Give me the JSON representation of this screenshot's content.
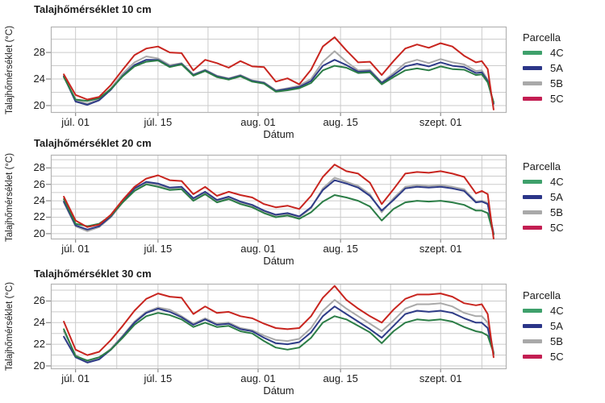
{
  "legend": {
    "title": "Parcella",
    "entries": [
      {
        "label": "4C",
        "color": "#3ea06b"
      },
      {
        "label": "5A",
        "color": "#2b3588"
      },
      {
        "label": "5B",
        "color": "#a9a9a9"
      },
      {
        "label": "5C",
        "color": "#c31e52"
      }
    ]
  },
  "chart_data": [
    {
      "type": "line",
      "title": "Talajhőmérséklet 10 cm",
      "xlabel": "Dátum",
      "ylabel": "Talajhőmérséklet (°C)",
      "legend_title": "Parcella",
      "xlim": [
        -4.2,
        73.2
      ],
      "ylim": [
        18.9,
        31.9
      ],
      "y_tick_labels": [
        20,
        24,
        28
      ],
      "y_gridline_start": 20,
      "y_gridline_step": 2,
      "x_ticks": [
        {
          "day": 0,
          "label": "júl. 01"
        },
        {
          "day": 14,
          "label": "júl. 15"
        },
        {
          "day": 31,
          "label": "aug. 01"
        },
        {
          "day": 45,
          "label": "aug. 15"
        },
        {
          "day": 62,
          "label": "szept. 01"
        }
      ],
      "x_gridline_days": [
        0,
        7,
        14,
        22.5,
        31,
        38,
        45,
        53.5,
        62,
        69
      ],
      "x_days": [
        -2,
        0,
        2,
        4,
        6,
        8,
        10,
        12,
        14,
        16,
        18,
        20,
        22,
        24,
        26,
        28,
        30,
        32,
        34,
        36,
        38,
        40,
        42,
        44,
        46,
        48,
        50,
        52,
        54,
        56,
        58,
        60,
        62,
        64,
        66,
        68,
        69,
        70,
        71
      ],
      "series": [
        {
          "name": "4C",
          "line_color": "#2b7d46",
          "legend_color": "#3ea06b",
          "values": [
            24.3,
            20.9,
            20.7,
            21.1,
            22.5,
            24.4,
            25.9,
            26.6,
            26.8,
            25.8,
            26.2,
            24.5,
            25.2,
            24.3,
            23.9,
            24.4,
            23.6,
            23.3,
            22.1,
            22.3,
            22.6,
            23.4,
            25.3,
            26.0,
            25.7,
            24.9,
            25.0,
            23.2,
            24.3,
            25.3,
            25.6,
            25.3,
            25.9,
            25.5,
            25.4,
            24.6,
            24.7,
            23.5,
            20.5
          ]
        },
        {
          "name": "5A",
          "line_color": "#2e3b87",
          "legend_color": "#2b3588",
          "values": [
            24.4,
            20.6,
            20.1,
            20.8,
            22.4,
            24.5,
            26.1,
            26.9,
            26.9,
            25.9,
            26.3,
            24.6,
            25.3,
            24.4,
            24.0,
            24.5,
            23.7,
            23.4,
            22.2,
            22.5,
            22.8,
            23.7,
            26.0,
            26.9,
            26.1,
            25.1,
            25.2,
            23.4,
            24.6,
            25.9,
            26.3,
            25.9,
            26.5,
            26.0,
            25.8,
            24.9,
            25.0,
            23.7,
            20.3
          ]
        },
        {
          "name": "5B",
          "line_color": "#a9a9a9",
          "legend_color": "#a9a9a9",
          "values": [
            24.5,
            20.8,
            20.3,
            20.9,
            22.6,
            24.8,
            26.5,
            27.4,
            27.1,
            26.1,
            26.4,
            24.7,
            25.4,
            24.5,
            24.1,
            24.6,
            23.8,
            23.5,
            22.3,
            22.6,
            23.0,
            24.0,
            26.6,
            28.2,
            26.6,
            25.3,
            25.4,
            23.5,
            24.9,
            26.4,
            26.9,
            26.4,
            27.0,
            26.5,
            26.2,
            25.2,
            25.3,
            23.9,
            20.2
          ]
        },
        {
          "name": "5C",
          "line_color": "#c8251f",
          "legend_color": "#c31e52",
          "values": [
            24.7,
            21.6,
            20.9,
            21.3,
            23.1,
            25.4,
            27.6,
            28.6,
            28.9,
            28.0,
            27.9,
            25.3,
            26.9,
            26.4,
            25.7,
            26.7,
            25.9,
            25.8,
            23.6,
            24.1,
            23.2,
            25.4,
            28.9,
            30.3,
            28.3,
            26.5,
            26.6,
            24.6,
            26.7,
            28.6,
            29.2,
            28.7,
            29.4,
            28.9,
            27.5,
            26.5,
            26.7,
            25.5,
            19.4
          ]
        }
      ]
    },
    {
      "type": "line",
      "title": "Talajhőmérséklet 20 cm",
      "xlabel": "Dátum",
      "ylabel": "Talajhőmérséklet (°C)",
      "legend_title": "Parcella",
      "xlim": [
        -4.2,
        73.2
      ],
      "ylim": [
        19.3,
        29.6
      ],
      "y_tick_labels": [
        20,
        22,
        24,
        26,
        28
      ],
      "y_gridline_start": 20,
      "y_gridline_step": 1,
      "x_ticks": [
        {
          "day": 0,
          "label": "júl. 01"
        },
        {
          "day": 14,
          "label": "júl. 15"
        },
        {
          "day": 31,
          "label": "aug. 01"
        },
        {
          "day": 45,
          "label": "aug. 15"
        },
        {
          "day": 62,
          "label": "szept. 01"
        }
      ],
      "x_gridline_days": [
        0,
        7,
        14,
        22.5,
        31,
        38,
        45,
        53.5,
        62,
        69
      ],
      "x_days": [
        -2,
        0,
        2,
        4,
        6,
        8,
        10,
        12,
        14,
        16,
        18,
        20,
        22,
        24,
        26,
        28,
        30,
        32,
        34,
        36,
        38,
        40,
        42,
        44,
        46,
        48,
        50,
        52,
        54,
        56,
        58,
        60,
        62,
        64,
        66,
        68,
        69,
        70,
        71
      ],
      "series": [
        {
          "name": "4C",
          "line_color": "#2b7d46",
          "legend_color": "#3ea06b",
          "values": [
            24.2,
            21.2,
            20.9,
            21.2,
            22.2,
            23.8,
            25.2,
            26.0,
            25.7,
            25.3,
            25.4,
            24.0,
            24.8,
            23.8,
            24.2,
            23.6,
            23.2,
            22.5,
            22.0,
            22.2,
            21.8,
            22.6,
            23.9,
            24.7,
            24.4,
            24.0,
            23.3,
            21.6,
            23.0,
            23.8,
            24.0,
            23.9,
            24.0,
            23.8,
            23.5,
            22.8,
            22.8,
            22.5,
            19.9
          ]
        },
        {
          "name": "5A",
          "line_color": "#2e3b87",
          "legend_color": "#2b3588",
          "values": [
            23.9,
            21.0,
            20.5,
            20.9,
            22.1,
            23.9,
            25.5,
            26.3,
            26.1,
            25.6,
            25.7,
            24.3,
            25.1,
            24.1,
            24.5,
            23.9,
            23.5,
            22.8,
            22.3,
            22.5,
            22.1,
            23.2,
            25.3,
            26.5,
            26.1,
            25.6,
            24.6,
            22.8,
            24.1,
            25.5,
            25.7,
            25.6,
            25.7,
            25.5,
            25.2,
            23.8,
            23.9,
            23.6,
            20.0
          ]
        },
        {
          "name": "5B",
          "line_color": "#a9a9a9",
          "legend_color": "#a9a9a9",
          "values": [
            23.8,
            20.9,
            20.3,
            20.8,
            22.0,
            23.8,
            25.4,
            26.2,
            25.9,
            25.5,
            25.6,
            24.2,
            25.0,
            24.0,
            24.4,
            23.8,
            23.4,
            22.7,
            22.2,
            22.4,
            22.0,
            23.1,
            25.5,
            26.8,
            26.3,
            25.8,
            24.8,
            22.6,
            24.3,
            25.7,
            25.9,
            25.8,
            25.9,
            25.7,
            25.4,
            23.9,
            24.0,
            23.7,
            19.9
          ]
        },
        {
          "name": "5C",
          "line_color": "#c8251f",
          "legend_color": "#c31e52",
          "values": [
            24.5,
            21.6,
            20.8,
            21.1,
            22.3,
            24.1,
            25.7,
            26.7,
            27.1,
            26.5,
            26.4,
            24.8,
            25.7,
            24.6,
            25.1,
            24.7,
            24.4,
            23.6,
            23.2,
            23.4,
            23.0,
            24.6,
            26.9,
            28.4,
            27.6,
            27.3,
            26.2,
            23.6,
            25.4,
            27.3,
            27.5,
            27.4,
            27.6,
            27.3,
            26.9,
            24.9,
            25.2,
            24.8,
            19.4
          ]
        }
      ]
    },
    {
      "type": "line",
      "title": "Talajhőmérséklet 30 cm",
      "xlabel": "Dátum",
      "ylabel": "Talajhőmérséklet (°C)",
      "legend_title": "Parcella",
      "xlim": [
        -4.2,
        73.2
      ],
      "ylim": [
        19.7,
        27.6
      ],
      "y_tick_labels": [
        20,
        22,
        24,
        26
      ],
      "y_gridline_start": 20,
      "y_gridline_step": 1,
      "x_ticks": [
        {
          "day": 0,
          "label": "júl. 01"
        },
        {
          "day": 14,
          "label": "júl. 15"
        },
        {
          "day": 31,
          "label": "aug. 01"
        },
        {
          "day": 45,
          "label": "aug. 15"
        },
        {
          "day": 62,
          "label": "szept. 01"
        }
      ],
      "x_gridline_days": [
        0,
        7,
        14,
        22.5,
        31,
        38,
        45,
        53.5,
        62,
        69
      ],
      "x_days": [
        -2,
        0,
        2,
        4,
        6,
        8,
        10,
        12,
        14,
        16,
        18,
        20,
        22,
        24,
        26,
        28,
        30,
        32,
        34,
        36,
        38,
        40,
        42,
        44,
        46,
        48,
        50,
        52,
        54,
        56,
        58,
        60,
        62,
        64,
        66,
        68,
        69,
        70,
        71
      ],
      "series": [
        {
          "name": "4C",
          "line_color": "#2b7d46",
          "legend_color": "#3ea06b",
          "values": [
            23.4,
            20.9,
            20.5,
            20.8,
            21.5,
            22.6,
            23.8,
            24.6,
            24.9,
            24.7,
            24.3,
            23.6,
            24.0,
            23.6,
            23.7,
            23.2,
            23.0,
            22.3,
            21.7,
            21.5,
            21.7,
            22.6,
            24.0,
            24.6,
            24.3,
            23.7,
            23.1,
            22.1,
            23.2,
            24.0,
            24.3,
            24.2,
            24.3,
            24.1,
            23.6,
            23.2,
            23.1,
            22.8,
            21.2
          ]
        },
        {
          "name": "5A",
          "line_color": "#2e3b87",
          "legend_color": "#2b3588",
          "values": [
            22.7,
            20.8,
            20.3,
            20.6,
            21.5,
            22.7,
            24.0,
            24.9,
            25.3,
            25.0,
            24.5,
            23.8,
            24.3,
            23.8,
            23.9,
            23.4,
            23.2,
            22.6,
            22.1,
            22.0,
            22.2,
            23.1,
            24.6,
            25.5,
            24.8,
            24.1,
            23.4,
            22.6,
            23.7,
            24.8,
            25.1,
            25.0,
            25.1,
            24.9,
            24.4,
            24.0,
            24.0,
            23.5,
            21.1
          ]
        },
        {
          "name": "5B",
          "line_color": "#a9a9a9",
          "legend_color": "#a9a9a9",
          "values": [
            23.2,
            21.0,
            20.4,
            20.7,
            21.6,
            22.8,
            24.1,
            25.0,
            25.4,
            25.2,
            24.6,
            23.9,
            24.4,
            23.9,
            24.0,
            23.5,
            23.3,
            22.8,
            22.4,
            22.3,
            22.5,
            23.5,
            25.1,
            26.1,
            25.3,
            24.6,
            23.9,
            23.2,
            24.2,
            25.3,
            25.7,
            25.7,
            25.8,
            25.5,
            24.9,
            24.6,
            24.6,
            24.0,
            21.3
          ]
        },
        {
          "name": "5C",
          "line_color": "#c8251f",
          "legend_color": "#c31e52",
          "values": [
            24.1,
            21.5,
            21.0,
            21.3,
            22.4,
            23.7,
            25.1,
            26.2,
            26.7,
            26.4,
            26.3,
            24.8,
            25.5,
            24.9,
            25.0,
            24.6,
            24.4,
            23.9,
            23.5,
            23.4,
            23.5,
            24.6,
            26.3,
            27.4,
            26.1,
            25.3,
            24.6,
            24.0,
            25.2,
            26.2,
            26.6,
            26.6,
            26.7,
            26.4,
            25.8,
            25.6,
            25.7,
            24.8,
            20.8
          ]
        }
      ]
    }
  ]
}
